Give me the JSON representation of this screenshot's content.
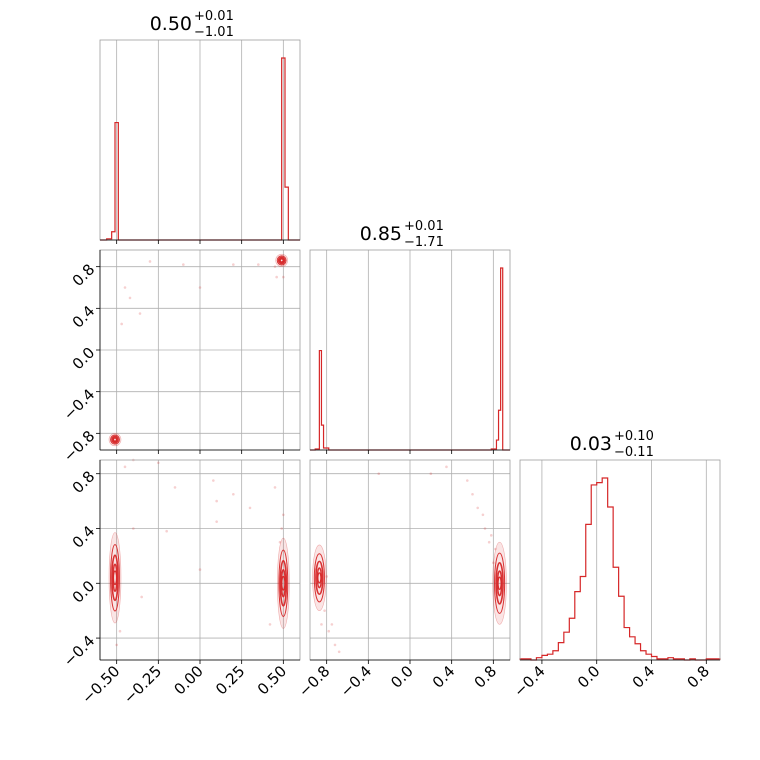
{
  "chart_data": {
    "type": "corner",
    "colors": {
      "line": "#d62728",
      "grid": "#b0b0b0",
      "frame": "#000000"
    },
    "grid": true,
    "params": [
      {
        "title": "0.50",
        "plus": "+0.01",
        "minus": "−1.01",
        "range": [
          -0.6,
          0.6
        ]
      },
      {
        "title": "0.85",
        "plus": "+0.01",
        "minus": "−1.71",
        "range": [
          -0.96,
          0.96
        ]
      },
      {
        "title": "0.03",
        "plus": "+0.10",
        "minus": "−0.11",
        "range": [
          -0.56,
          0.9
        ]
      }
    ],
    "ticks": {
      "p0": {
        "values": [
          -0.5,
          -0.25,
          0.0,
          0.25,
          0.5
        ],
        "labels": [
          "−0.50",
          "−0.25",
          "0.00",
          "0.25",
          "0.50"
        ]
      },
      "p1": {
        "values": [
          -0.8,
          -0.4,
          0.0,
          0.4,
          0.8
        ],
        "labels": [
          "−0.8",
          "−0.4",
          "0.0",
          "0.4",
          "0.8"
        ]
      },
      "p2": {
        "values": [
          -0.4,
          0.0,
          0.4,
          0.8
        ],
        "labels": [
          "−0.4",
          "0.0",
          "0.4",
          "0.8"
        ]
      }
    },
    "hist1d": [
      {
        "edges": [
          -0.6,
          -0.56,
          -0.53,
          -0.51,
          -0.49,
          -0.47,
          0.47,
          0.49,
          0.51,
          0.53,
          0.6
        ],
        "values": [
          0,
          1,
          7,
          100,
          0,
          0,
          0,
          155,
          45,
          0
        ]
      },
      {
        "edges": [
          -0.96,
          -0.91,
          -0.87,
          -0.85,
          -0.83,
          -0.78,
          0.7,
          0.78,
          0.83,
          0.85,
          0.87,
          0.89,
          0.91,
          0.96
        ],
        "values": [
          0,
          1,
          100,
          25,
          2,
          0,
          0,
          1,
          10,
          40,
          183,
          0,
          0
        ]
      },
      {
        "edges": [
          -0.56,
          -0.52,
          -0.48,
          -0.44,
          -0.4,
          -0.36,
          -0.32,
          -0.28,
          -0.24,
          -0.2,
          -0.16,
          -0.12,
          -0.08,
          -0.04,
          0.0,
          0.04,
          0.08,
          0.12,
          0.16,
          0.2,
          0.24,
          0.28,
          0.32,
          0.36,
          0.4,
          0.44,
          0.48,
          0.52,
          0.56,
          0.6,
          0.64,
          0.68,
          0.72,
          0.76,
          0.8,
          0.84,
          0.88,
          0.9
        ],
        "values": [
          1,
          1,
          0,
          2,
          4,
          5,
          8,
          15,
          24,
          36,
          59,
          72,
          117,
          151,
          153,
          157,
          132,
          80,
          55,
          28,
          20,
          14,
          8,
          5,
          3,
          1,
          1,
          2,
          1,
          1,
          0,
          1,
          0,
          0,
          1,
          1,
          1
        ]
      }
    ],
    "hist2d": [
      {
        "pair": [
          0,
          1
        ],
        "modes": [
          {
            "x": 0.49,
            "y": 0.86,
            "sx": 0.012,
            "sy": 0.02
          },
          {
            "x": -0.51,
            "y": -0.86,
            "sx": 0.012,
            "sy": 0.02
          }
        ],
        "scatter": [
          [
            -0.3,
            0.85
          ],
          [
            -0.1,
            0.82
          ],
          [
            0.2,
            0.82
          ],
          [
            0.35,
            0.82
          ],
          [
            -0.45,
            0.6
          ],
          [
            -0.36,
            0.35
          ],
          [
            -0.47,
            0.25
          ],
          [
            -0.42,
            0.5
          ],
          [
            0.0,
            0.6
          ],
          [
            0.45,
            0.8
          ],
          [
            0.46,
            0.7
          ],
          [
            0.5,
            0.7
          ]
        ]
      },
      {
        "pair": [
          0,
          2
        ],
        "modes": [
          {
            "x": -0.51,
            "y": 0.04,
            "sx": 0.012,
            "sy": 0.11
          },
          {
            "x": 0.5,
            "y": 0.0,
            "sx": 0.012,
            "sy": 0.11
          }
        ],
        "scatter": [
          [
            -0.45,
            0.85
          ],
          [
            -0.4,
            0.9
          ],
          [
            -0.25,
            0.88
          ],
          [
            -0.15,
            0.7
          ],
          [
            0.1,
            0.6
          ],
          [
            0.08,
            0.75
          ],
          [
            0.2,
            0.65
          ],
          [
            0.3,
            0.55
          ],
          [
            0.45,
            0.7
          ],
          [
            -0.5,
            -0.45
          ],
          [
            -0.48,
            -0.35
          ],
          [
            0.49,
            0.4
          ],
          [
            0.5,
            0.5
          ],
          [
            0.48,
            0.3
          ],
          [
            -0.4,
            0.4
          ],
          [
            0.42,
            -0.3
          ],
          [
            -0.35,
            -0.1
          ],
          [
            0.0,
            0.1
          ],
          [
            0.1,
            0.45
          ],
          [
            -0.2,
            0.38
          ]
        ]
      },
      {
        "pair": [
          1,
          2
        ],
        "modes": [
          {
            "x": -0.87,
            "y": 0.04,
            "sx": 0.022,
            "sy": 0.08
          },
          {
            "x": 0.86,
            "y": 0.0,
            "sx": 0.022,
            "sy": 0.1
          }
        ],
        "scatter": [
          [
            -0.82,
            -0.2
          ],
          [
            -0.78,
            -0.35
          ],
          [
            -0.72,
            -0.45
          ],
          [
            -0.68,
            -0.5
          ],
          [
            -0.75,
            -0.3
          ],
          [
            -0.85,
            -0.3
          ],
          [
            0.72,
            0.4
          ],
          [
            0.76,
            0.3
          ],
          [
            0.65,
            0.55
          ],
          [
            0.82,
            0.25
          ],
          [
            0.6,
            0.65
          ],
          [
            0.2,
            0.8
          ],
          [
            0.35,
            0.85
          ],
          [
            0.55,
            0.75
          ],
          [
            0.7,
            0.5
          ],
          [
            -0.3,
            0.8
          ],
          [
            0.78,
            0.35
          ],
          [
            -0.8,
            0.05
          ],
          [
            0.8,
            0.15
          ],
          [
            -0.9,
            0.1
          ]
        ]
      }
    ]
  }
}
